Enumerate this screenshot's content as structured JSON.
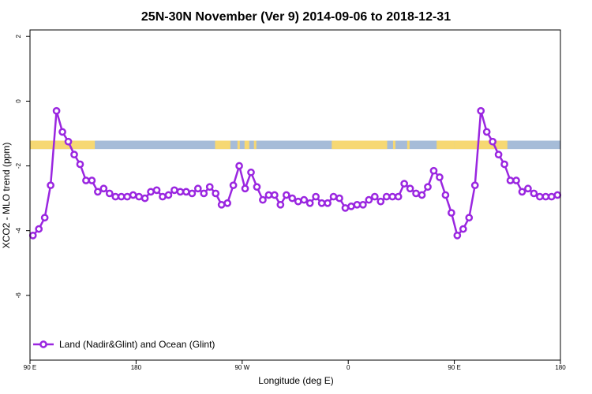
{
  "chart_data": {
    "type": "line",
    "title": "25N-30N November (Ver 9)   2014-09-06 to 2018-12-31",
    "xlabel": "Longitude (deg E)",
    "ylabel": "XCO2 - MLO trend (ppm)",
    "xlim": [
      90,
      540
    ],
    "ylim": [
      -8,
      2.2
    ],
    "x_ticks": [
      {
        "value": 90,
        "label": "90 E"
      },
      {
        "value": 180,
        "label": "180"
      },
      {
        "value": 270,
        "label": "90 W"
      },
      {
        "value": 360,
        "label": "0"
      },
      {
        "value": 450,
        "label": "90 E"
      },
      {
        "value": 540,
        "label": "180"
      }
    ],
    "y_ticks": [
      {
        "value": -6,
        "label": "-6"
      },
      {
        "value": -4,
        "label": "-4"
      },
      {
        "value": -2,
        "label": "-2"
      },
      {
        "value": 0,
        "label": "0"
      },
      {
        "value": 2,
        "label": "2"
      }
    ],
    "grid": false,
    "legend": {
      "position": "bottom-left",
      "entries": [
        "Land (Nadir&Glint) and Ocean (Glint)"
      ]
    },
    "land_ocean_strip": {
      "y_range": [
        -1.48,
        -1.22
      ],
      "ocean_color": "#a6bcd8",
      "land_color": "#f6d873",
      "land_segments": [
        [
          90,
          145
        ],
        [
          247,
          260
        ],
        [
          266,
          268
        ],
        [
          272,
          276
        ],
        [
          280,
          282
        ],
        [
          346,
          393
        ],
        [
          398,
          400
        ],
        [
          410,
          412
        ],
        [
          435,
          450
        ],
        [
          450,
          495
        ]
      ]
    },
    "series": [
      {
        "name": "Land (Nadir&Glint) and Ocean (Glint)",
        "color": "#9a26e0",
        "x": [
          92.5,
          97.5,
          102.5,
          107.5,
          112.5,
          117.5,
          122.5,
          127.5,
          132.5,
          137.5,
          142.5,
          147.5,
          152.5,
          157.5,
          162.5,
          167.5,
          172.5,
          177.5,
          182.5,
          187.5,
          192.5,
          197.5,
          202.5,
          207.5,
          212.5,
          217.5,
          222.5,
          227.5,
          232.5,
          237.5,
          242.5,
          247.5,
          252.5,
          257.5,
          262.5,
          267.5,
          272.5,
          277.5,
          282.5,
          287.5,
          292.5,
          297.5,
          302.5,
          307.5,
          312.5,
          317.5,
          322.5,
          327.5,
          332.5,
          337.5,
          342.5,
          347.5,
          352.5,
          357.5,
          362.5,
          367.5,
          372.5,
          377.5,
          382.5,
          387.5,
          392.5,
          397.5,
          402.5,
          407.5,
          412.5,
          417.5,
          422.5,
          427.5,
          432.5,
          437.5,
          442.5,
          447.5,
          452.5,
          457.5,
          462.5,
          467.5,
          472.5,
          477.5,
          482.5,
          487.5,
          492.5,
          497.5,
          502.5,
          507.5,
          512.5,
          517.5,
          522.5,
          527.5,
          532.5,
          537.5
        ],
        "y": [
          -4.15,
          -3.95,
          -3.6,
          -2.6,
          -0.3,
          -0.95,
          -1.25,
          -1.65,
          -1.95,
          -2.45,
          -2.45,
          -2.8,
          -2.7,
          -2.85,
          -2.95,
          -2.95,
          -2.95,
          -2.9,
          -2.95,
          -3.0,
          -2.8,
          -2.75,
          -2.95,
          -2.9,
          -2.75,
          -2.8,
          -2.8,
          -2.85,
          -2.7,
          -2.85,
          -2.65,
          -2.85,
          -3.2,
          -3.15,
          -2.6,
          -2.0,
          -2.7,
          -2.2,
          -2.65,
          -3.05,
          -2.9,
          -2.9,
          -3.2,
          -2.9,
          -3.0,
          -3.1,
          -3.05,
          -3.15,
          -2.95,
          -3.15,
          -3.15,
          -2.95,
          -3.0,
          -3.3,
          -3.25,
          -3.2,
          -3.2,
          -3.05,
          -2.95,
          -3.1,
          -2.95,
          -2.95,
          -2.95,
          -2.55,
          -2.7,
          -2.85,
          -2.9,
          -2.65,
          -2.15,
          -2.35,
          -2.9,
          -3.45,
          -4.15,
          -3.95,
          -3.6,
          -2.6,
          -0.3,
          -0.95,
          -1.25,
          -1.65,
          -1.95,
          -2.45,
          -2.45,
          -2.8,
          -2.7,
          -2.85,
          -2.95,
          -2.95,
          -2.95,
          -2.9
        ]
      }
    ]
  }
}
